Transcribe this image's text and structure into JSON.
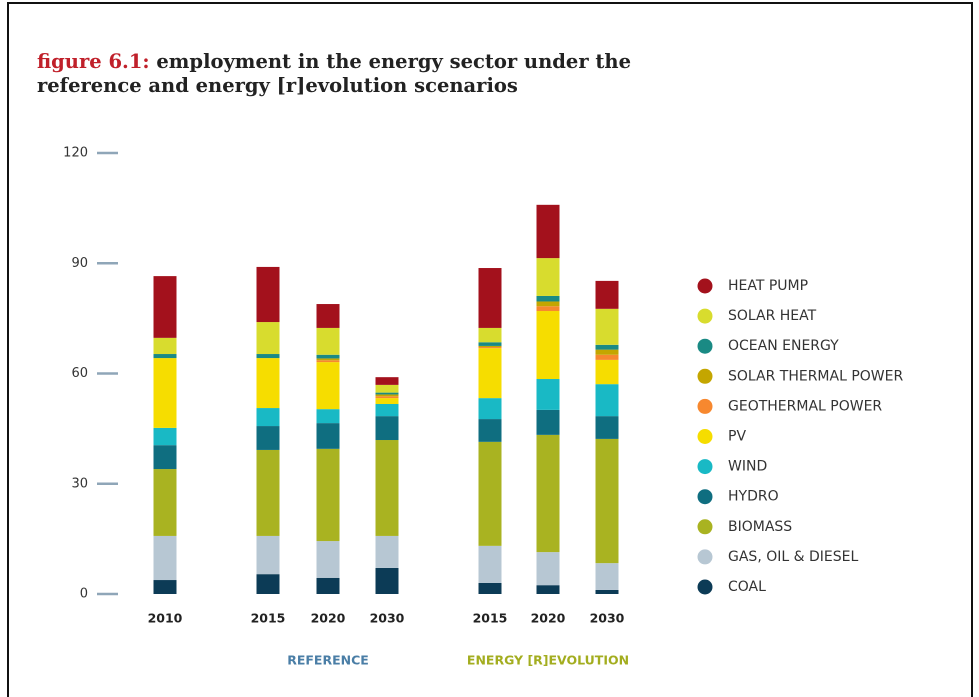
{
  "chart_data": {
    "type": "stacked_bar",
    "title_label": "figure 6.1:",
    "title": "employment in the energy sector under the reference and energy [r]evolution scenarios",
    "categories": [
      "2010",
      "2015",
      "2020",
      "2030",
      "2015",
      "2020",
      "2030"
    ],
    "groups": [
      {
        "label": "REFERENCE",
        "color": "#4a7ea6"
      },
      {
        "label": "ENERGY [R]EVOLUTION",
        "color": "#a3ad1f"
      }
    ],
    "ylim": [
      0,
      120
    ],
    "yticks": [
      0,
      30,
      60,
      90,
      120
    ],
    "series": [
      {
        "name": "COAL",
        "color": "#0c3b56",
        "values": [
          3.8,
          5.4,
          4.4,
          7.1,
          3.0,
          2.4,
          1.1
        ]
      },
      {
        "name": "GAS, OIL & DIESEL",
        "color": "#b7c7d3",
        "values": [
          12.0,
          10.4,
          10.0,
          8.7,
          10.1,
          9.0,
          7.3
        ]
      },
      {
        "name": "BIOMASS",
        "color": "#a9b321",
        "values": [
          18.2,
          23.4,
          25.1,
          26.1,
          28.3,
          31.9,
          33.8
        ]
      },
      {
        "name": "HYDRO",
        "color": "#0f6e80",
        "values": [
          6.5,
          6.5,
          7.0,
          6.5,
          6.2,
          6.8,
          6.2
        ]
      },
      {
        "name": "WIND",
        "color": "#19b9c5",
        "values": [
          4.7,
          4.9,
          3.8,
          3.3,
          5.7,
          8.4,
          8.7
        ]
      },
      {
        "name": "PV",
        "color": "#f6dd00",
        "values": [
          19.0,
          13.6,
          12.8,
          1.6,
          13.6,
          18.5,
          6.6
        ]
      },
      {
        "name": "GEOTHERMAL POWER",
        "color": "#f7882f",
        "values": [
          0,
          0,
          0.5,
          0.5,
          0.3,
          1.3,
          1.4
        ]
      },
      {
        "name": "SOLAR THERMAL POWER",
        "color": "#c4a600",
        "values": [
          0,
          0,
          0.5,
          0.5,
          0.3,
          1.3,
          1.4
        ]
      },
      {
        "name": "OCEAN ENERGY",
        "color": "#1a8a84",
        "values": [
          1.1,
          1.1,
          1.0,
          0.5,
          1.0,
          1.5,
          1.3
        ]
      },
      {
        "name": "SOLAR HEAT",
        "color": "#d8dc2e",
        "values": [
          4.4,
          8.7,
          7.3,
          2.1,
          3.9,
          10.3,
          9.8
        ]
      },
      {
        "name": "HEAT PUMP",
        "color": "#a3111c",
        "values": [
          16.8,
          15.0,
          6.5,
          2.1,
          16.3,
          14.5,
          7.6
        ]
      }
    ]
  }
}
